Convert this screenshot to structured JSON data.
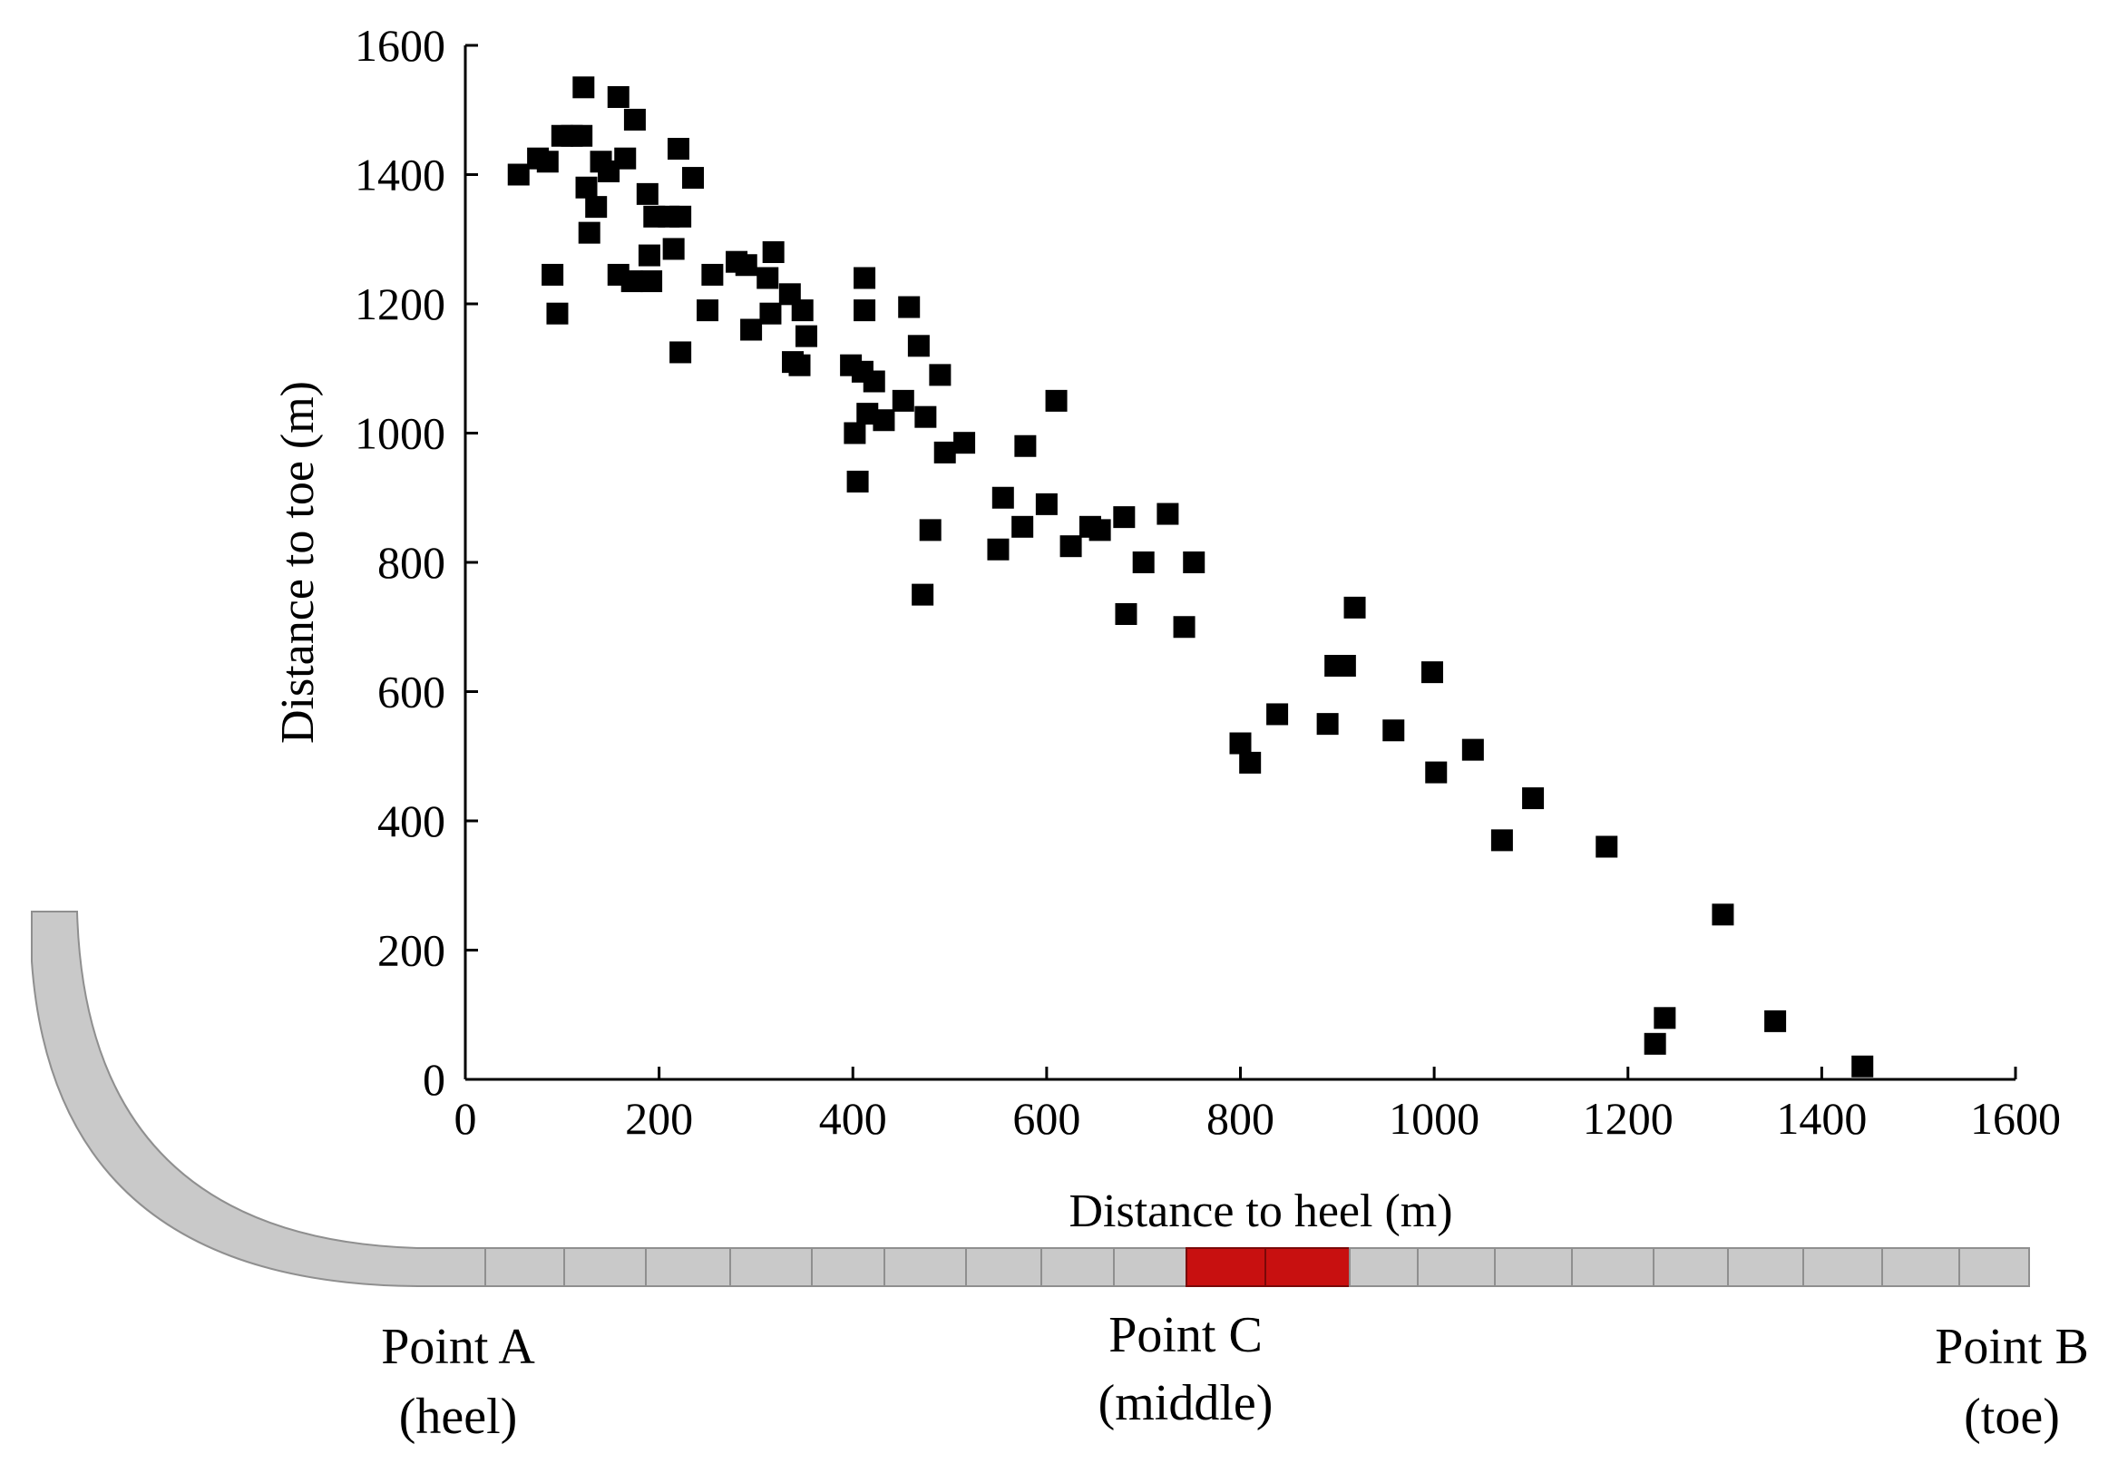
{
  "chart_data": {
    "type": "scatter",
    "title": "",
    "xlabel": "Distance to heel (m)",
    "ylabel": "Distance to toe (m)",
    "xlim": [
      0,
      1600
    ],
    "ylim": [
      0,
      1600
    ],
    "x_ticks": [
      "0",
      "200",
      "400",
      "600",
      "800",
      "1000",
      "1200",
      "1400",
      "1600"
    ],
    "y_ticks": [
      "0",
      "200",
      "400",
      "600",
      "800",
      "1000",
      "1200",
      "1400",
      "1600"
    ],
    "grid": false,
    "marker": "square",
    "marker_color": "#000000",
    "points": [
      [
        55,
        1400
      ],
      [
        75,
        1425
      ],
      [
        85,
        1420
      ],
      [
        90,
        1245
      ],
      [
        95,
        1185
      ],
      [
        100,
        1460
      ],
      [
        110,
        1460
      ],
      [
        120,
        1460
      ],
      [
        122,
        1535
      ],
      [
        125,
        1380
      ],
      [
        128,
        1310
      ],
      [
        135,
        1350
      ],
      [
        140,
        1420
      ],
      [
        148,
        1405
      ],
      [
        158,
        1520
      ],
      [
        158,
        1245
      ],
      [
        165,
        1425
      ],
      [
        172,
        1235
      ],
      [
        175,
        1485
      ],
      [
        188,
        1370
      ],
      [
        190,
        1275
      ],
      [
        192,
        1235
      ],
      [
        195,
        1335
      ],
      [
        210,
        1335
      ],
      [
        215,
        1285
      ],
      [
        220,
        1440
      ],
      [
        222,
        1335
      ],
      [
        222,
        1125
      ],
      [
        235,
        1395
      ],
      [
        250,
        1190
      ],
      [
        255,
        1245
      ],
      [
        280,
        1265
      ],
      [
        290,
        1260
      ],
      [
        295,
        1160
      ],
      [
        312,
        1240
      ],
      [
        315,
        1185
      ],
      [
        318,
        1280
      ],
      [
        335,
        1215
      ],
      [
        338,
        1110
      ],
      [
        345,
        1105
      ],
      [
        348,
        1190
      ],
      [
        352,
        1150
      ],
      [
        398,
        1105
      ],
      [
        402,
        1000
      ],
      [
        405,
        925
      ],
      [
        410,
        1095
      ],
      [
        412,
        1240
      ],
      [
        412,
        1190
      ],
      [
        415,
        1030
      ],
      [
        422,
        1080
      ],
      [
        432,
        1020
      ],
      [
        452,
        1050
      ],
      [
        458,
        1195
      ],
      [
        468,
        1135
      ],
      [
        472,
        750
      ],
      [
        475,
        1025
      ],
      [
        480,
        850
      ],
      [
        490,
        1090
      ],
      [
        495,
        970
      ],
      [
        515,
        985
      ],
      [
        550,
        820
      ],
      [
        555,
        900
      ],
      [
        575,
        855
      ],
      [
        578,
        980
      ],
      [
        600,
        890
      ],
      [
        610,
        1050
      ],
      [
        625,
        825
      ],
      [
        645,
        855
      ],
      [
        655,
        850
      ],
      [
        680,
        870
      ],
      [
        682,
        720
      ],
      [
        700,
        800
      ],
      [
        725,
        875
      ],
      [
        742,
        700
      ],
      [
        752,
        800
      ],
      [
        800,
        520
      ],
      [
        810,
        490
      ],
      [
        838,
        565
      ],
      [
        890,
        550
      ],
      [
        898,
        640
      ],
      [
        908,
        640
      ],
      [
        918,
        730
      ],
      [
        958,
        540
      ],
      [
        998,
        630
      ],
      [
        1002,
        475
      ],
      [
        1040,
        510
      ],
      [
        1070,
        370
      ],
      [
        1102,
        435
      ],
      [
        1178,
        360
      ],
      [
        1228,
        55
      ],
      [
        1238,
        95
      ],
      [
        1298,
        255
      ],
      [
        1352,
        90
      ],
      [
        1442,
        20
      ]
    ]
  },
  "diagram": {
    "segment_colors": {
      "normal": "#c9c9c9",
      "highlight": "#c81010",
      "outline": "#8f8f8f"
    },
    "label_point_a": "Point A",
    "label_point_a_sub": "(heel)",
    "label_point_c": "Point C",
    "label_point_c_sub": "(middle)",
    "label_point_b": "Point B",
    "label_point_b_sub": "(toe)"
  }
}
